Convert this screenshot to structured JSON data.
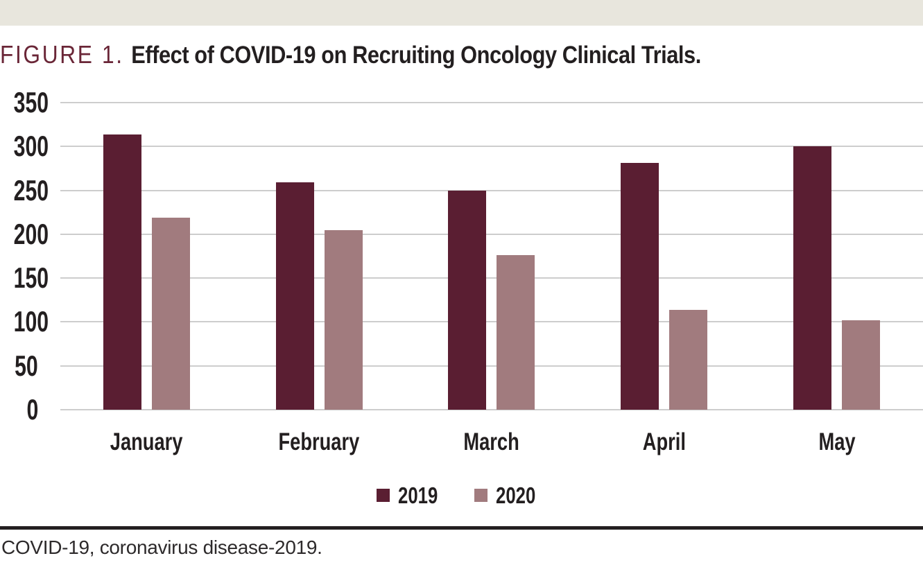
{
  "figure": {
    "label": "FIGURE 1.",
    "title": "Effect of COVID-19 on Recruiting Oncology Clinical Trials.",
    "footnote": "COVID-19, coronavirus disease-2019."
  },
  "colors": {
    "top_band": "#e8e6dd",
    "figure_label": "#6a2637",
    "title_text": "#231f20",
    "gridline": "#cdcdcd",
    "rule": "#231f20",
    "series_2019": "#5a1e32",
    "series_2020": "#a17b7e"
  },
  "chart_data": {
    "type": "bar",
    "title": "Effect of COVID-19 on Recruiting Oncology Clinical Trials.",
    "categories": [
      "January",
      "February",
      "March",
      "April",
      "May"
    ],
    "series": [
      {
        "name": "2019",
        "color": "#5a1e32",
        "values": [
          314,
          259,
          250,
          281,
          300
        ]
      },
      {
        "name": "2020",
        "color": "#a17b7e",
        "values": [
          219,
          205,
          176,
          114,
          102
        ]
      }
    ],
    "xlabel": "",
    "ylabel": "",
    "ylim": [
      0,
      350
    ],
    "yticks": [
      0,
      50,
      100,
      150,
      200,
      250,
      300,
      350
    ],
    "grid": "horizontal",
    "legend_position": "bottom-center"
  }
}
